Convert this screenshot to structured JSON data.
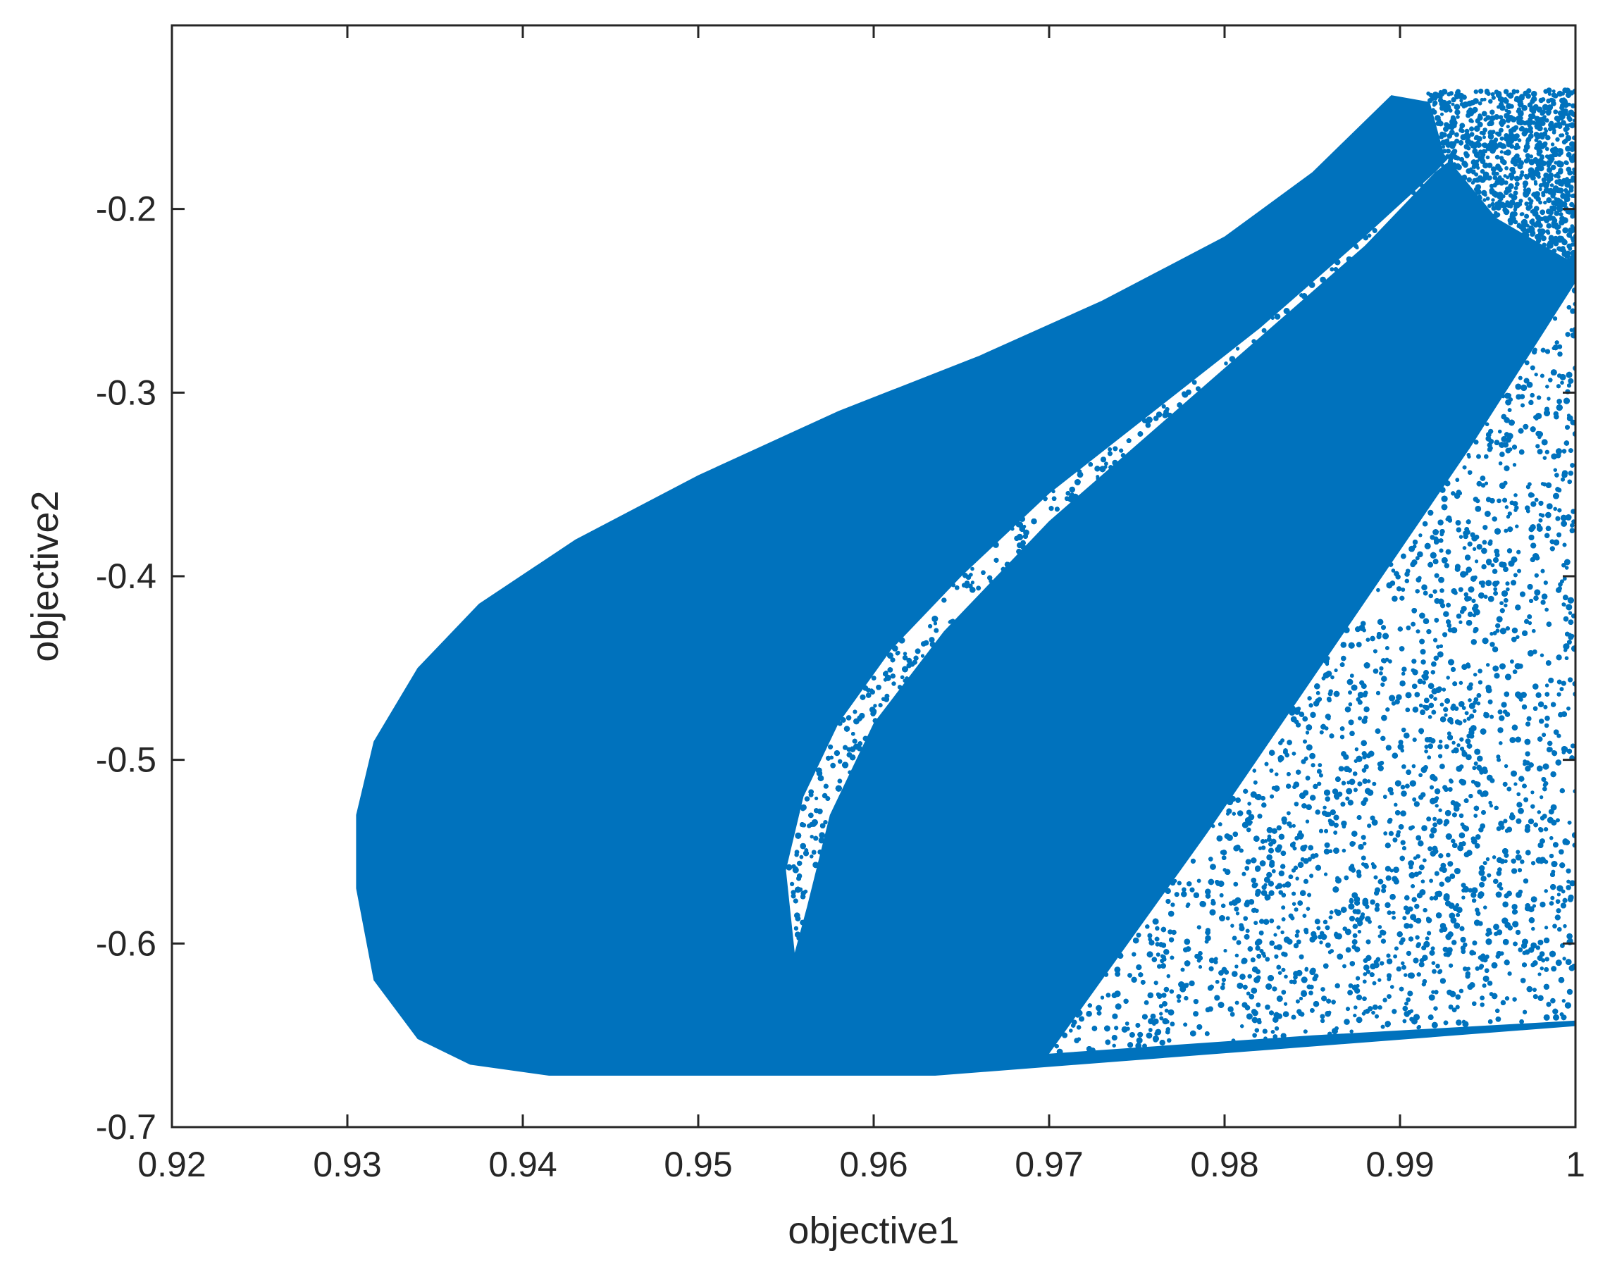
{
  "chart_data": {
    "type": "scatter",
    "title": "",
    "xlabel": "objective1",
    "ylabel": "objective2",
    "xlim": [
      0.92,
      1.0
    ],
    "ylim": [
      -0.7,
      -0.1
    ],
    "x_ticks": [
      0.92,
      0.93,
      0.94,
      0.95,
      0.96,
      0.97,
      0.98,
      0.99,
      1
    ],
    "x_tick_labels": [
      "0.92",
      "0.93",
      "0.94",
      "0.95",
      "0.96",
      "0.97",
      "0.98",
      "0.99",
      "1"
    ],
    "y_ticks": [
      -0.7,
      -0.6,
      -0.5,
      -0.4,
      -0.3,
      -0.2
    ],
    "y_tick_labels": [
      "-0.7",
      "-0.6",
      "-0.5",
      "-0.4",
      "-0.3",
      "-0.2"
    ],
    "grid": false,
    "box": true,
    "marker_color": "#0072BD",
    "series": [
      {
        "description_of_shape": "dense point cloud",
        "outer_boundary": [
          [
            0.9895,
            -0.138
          ],
          [
            0.993,
            -0.144
          ],
          [
            1.0,
            -0.142
          ],
          [
            1.0,
            -0.645
          ],
          [
            0.9635,
            -0.672
          ],
          [
            0.9415,
            -0.672
          ],
          [
            0.937,
            -0.666
          ],
          [
            0.934,
            -0.652
          ],
          [
            0.9315,
            -0.62
          ],
          [
            0.9305,
            -0.57
          ],
          [
            0.9305,
            -0.53
          ],
          [
            0.9315,
            -0.49
          ],
          [
            0.934,
            -0.45
          ],
          [
            0.9375,
            -0.415
          ],
          [
            0.943,
            -0.38
          ],
          [
            0.95,
            -0.345
          ],
          [
            0.958,
            -0.31
          ],
          [
            0.966,
            -0.28
          ],
          [
            0.973,
            -0.25
          ],
          [
            0.98,
            -0.215
          ],
          [
            0.985,
            -0.18
          ]
        ],
        "inner_sparse_band": [
          [
            0.9555,
            -0.605
          ],
          [
            0.955,
            -0.56
          ],
          [
            0.956,
            -0.52
          ],
          [
            0.958,
            -0.48
          ],
          [
            0.961,
            -0.44
          ],
          [
            0.965,
            -0.4
          ],
          [
            0.97,
            -0.355
          ],
          [
            0.976,
            -0.31
          ],
          [
            0.982,
            -0.265
          ],
          [
            0.988,
            -0.215
          ],
          [
            0.992,
            -0.18
          ],
          [
            0.996,
            -0.15
          ],
          [
            0.993,
            -0.17
          ],
          [
            0.988,
            -0.22
          ],
          [
            0.982,
            -0.27
          ],
          [
            0.976,
            -0.32
          ],
          [
            0.97,
            -0.37
          ],
          [
            0.964,
            -0.43
          ],
          [
            0.96,
            -0.48
          ],
          [
            0.9575,
            -0.53
          ],
          [
            0.9562,
            -0.58
          ]
        ],
        "right_sparse_region": [
          [
            0.97,
            -0.66
          ],
          [
            0.9745,
            -0.6
          ],
          [
            0.979,
            -0.54
          ],
          [
            0.984,
            -0.47
          ],
          [
            0.989,
            -0.4
          ],
          [
            0.994,
            -0.33
          ],
          [
            0.998,
            -0.27
          ],
          [
            1.0,
            -0.24
          ],
          [
            1.0,
            -0.642
          ],
          [
            0.985,
            -0.65
          ]
        ],
        "upper_right_sparse_region": [
          [
            0.9915,
            -0.135
          ],
          [
            1.0,
            -0.135
          ],
          [
            1.0,
            -0.23
          ],
          [
            0.9955,
            -0.205
          ],
          [
            0.9925,
            -0.17
          ]
        ]
      }
    ]
  }
}
